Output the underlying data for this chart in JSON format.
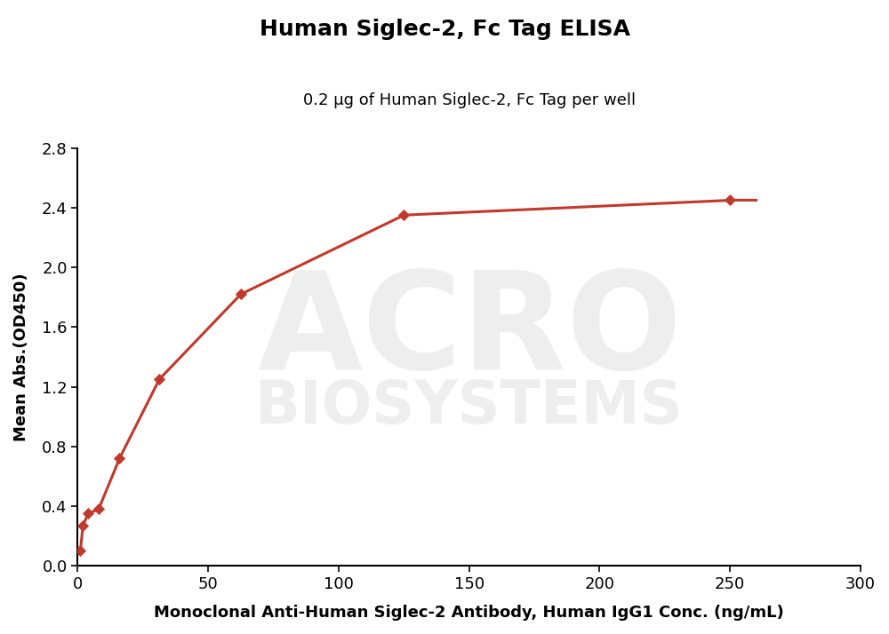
{
  "title": "Human Siglec-2, Fc Tag ELISA",
  "subtitle": "0.2 μg of Human Siglec-2, Fc Tag per well",
  "xlabel": "Monoclonal Anti-Human Siglec-2 Antibody, Human IgG1 Conc. (ng/mL)",
  "ylabel": "Mean Abs.(OD450)",
  "x_data": [
    1.0,
    2.0,
    4.0,
    8.0,
    16.0,
    31.25,
    62.5,
    125.0,
    250.0
  ],
  "y_data": [
    0.1,
    0.27,
    0.35,
    0.38,
    0.72,
    1.25,
    1.82,
    2.35,
    2.45
  ],
  "xlim": [
    0,
    300
  ],
  "ylim": [
    0.0,
    2.8
  ],
  "xticks": [
    0,
    50,
    100,
    150,
    200,
    250,
    300
  ],
  "yticks": [
    0.0,
    0.4,
    0.8,
    1.2,
    1.6,
    2.0,
    2.4,
    2.8
  ],
  "curve_color": "#c0392b",
  "marker_color": "#c0392b",
  "title_fontsize": 18,
  "subtitle_fontsize": 13,
  "label_fontsize": 13,
  "tick_fontsize": 13,
  "background_color": "#ffffff",
  "watermark_color": "#eeeeee"
}
